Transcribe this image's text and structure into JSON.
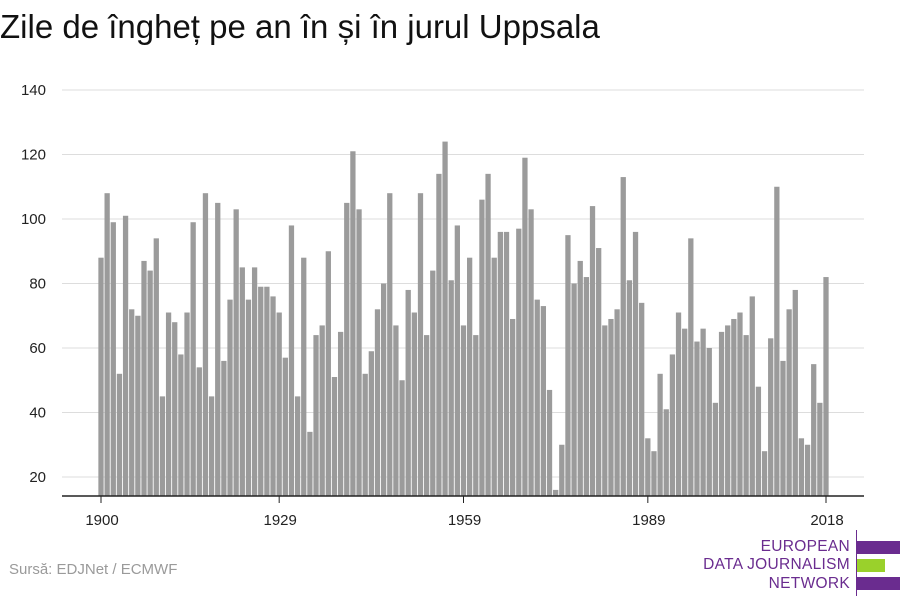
{
  "title": "Zile de îngheț pe an în și în jurul Uppsala",
  "source": "Sursă: EDJNet / ECMWF",
  "logo": {
    "line1": "EUROPEAN",
    "line2": "DATA JOURNALISM",
    "line3": "NETWORK",
    "colors": {
      "purple": "#6a2c8f",
      "green": "#9ad12b"
    }
  },
  "chart_data": {
    "type": "bar",
    "title": "Zile de îngheț pe an în și în jurul Uppsala",
    "xlabel": "",
    "ylabel": "",
    "x_ticks": [
      1900,
      1929,
      1959,
      1989,
      2018
    ],
    "y_ticks": [
      20,
      40,
      60,
      80,
      100,
      120,
      140
    ],
    "ylim": [
      13,
      140
    ],
    "xlim": [
      1900,
      2018
    ],
    "grid": true,
    "bar_color": "#9b9b9b",
    "categories": [
      1900,
      1901,
      1902,
      1903,
      1904,
      1905,
      1906,
      1907,
      1908,
      1909,
      1910,
      1911,
      1912,
      1913,
      1914,
      1915,
      1916,
      1917,
      1918,
      1919,
      1920,
      1921,
      1922,
      1923,
      1924,
      1925,
      1926,
      1927,
      1928,
      1929,
      1930,
      1931,
      1932,
      1933,
      1934,
      1935,
      1936,
      1937,
      1938,
      1939,
      1940,
      1941,
      1942,
      1943,
      1944,
      1945,
      1946,
      1947,
      1948,
      1949,
      1950,
      1951,
      1952,
      1953,
      1954,
      1955,
      1956,
      1957,
      1958,
      1959,
      1960,
      1961,
      1962,
      1963,
      1964,
      1965,
      1966,
      1967,
      1968,
      1969,
      1970,
      1971,
      1972,
      1973,
      1974,
      1975,
      1976,
      1977,
      1978,
      1979,
      1980,
      1981,
      1982,
      1983,
      1984,
      1985,
      1986,
      1987,
      1988,
      1989,
      1990,
      1991,
      1992,
      1993,
      1994,
      1995,
      1996,
      1997,
      1998,
      1999,
      2000,
      2001,
      2002,
      2003,
      2004,
      2005,
      2006,
      2007,
      2008,
      2009,
      2010,
      2011,
      2012,
      2013,
      2014,
      2015,
      2016,
      2017,
      2018
    ],
    "values": [
      88,
      108,
      99,
      52,
      101,
      72,
      70,
      87,
      84,
      94,
      45,
      71,
      68,
      58,
      71,
      99,
      54,
      108,
      45,
      105,
      56,
      75,
      103,
      85,
      75,
      85,
      79,
      79,
      76,
      71,
      57,
      98,
      45,
      88,
      34,
      64,
      67,
      90,
      51,
      65,
      105,
      121,
      103,
      52,
      59,
      72,
      80,
      108,
      67,
      50,
      78,
      71,
      108,
      64,
      84,
      114,
      124,
      81,
      98,
      67,
      88,
      64,
      106,
      114,
      88,
      96,
      96,
      69,
      97,
      119,
      103,
      75,
      73,
      47,
      16,
      30,
      95,
      80,
      87,
      82,
      104,
      91,
      67,
      69,
      72,
      113,
      81,
      96,
      74,
      32,
      28,
      52,
      41,
      58,
      71,
      66,
      94,
      62,
      66,
      60,
      43,
      65,
      67,
      69,
      71,
      64,
      76,
      48,
      28,
      63,
      110,
      56,
      72,
      78,
      32,
      30,
      55,
      43,
      82
    ]
  }
}
